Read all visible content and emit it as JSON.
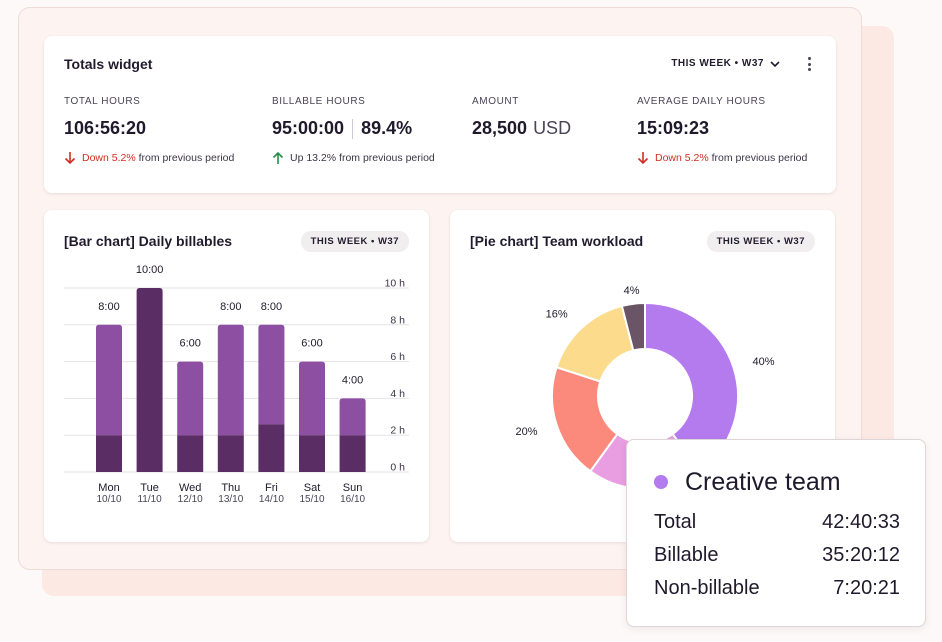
{
  "totals": {
    "title": "Totals widget",
    "period_label": "THIS WEEK • W37",
    "stats": [
      {
        "label": "TOTAL HOURS",
        "value": "106:56:20",
        "trend_change": "Down 5.2%",
        "trend_text": "from previous period",
        "trend": "down"
      },
      {
        "label": "BILLABLE HOURS",
        "value": "95:00:00",
        "value_secondary": "89.4%",
        "trend_change": "Up 13.2%",
        "trend_text": "from previous period",
        "trend": "up"
      },
      {
        "label": "AMOUNT",
        "value": "28,500",
        "unit": "USD"
      },
      {
        "label": "AVERAGE DAILY HOURS",
        "value": "15:09:23",
        "trend_change": "Down 5.2%",
        "trend_text": "from previous period",
        "trend": "down"
      }
    ]
  },
  "bar_card": {
    "title": "[Bar chart] Daily billables",
    "period_label": "THIS WEEK • W37"
  },
  "pie_card": {
    "title": "[Pie chart] Team workload",
    "period_label": "THIS WEEK • W37"
  },
  "tooltip": {
    "team": "Creative team",
    "rows": [
      {
        "label": "Total",
        "value": "42:40:33"
      },
      {
        "label": "Billable",
        "value": "35:20:12"
      },
      {
        "label": "Non-billable",
        "value": "7:20:21"
      }
    ]
  },
  "colors": {
    "bar_top": "#8c4fa2",
    "bar_bottom": "#5a2d64",
    "bar_full": "#5c2e64",
    "down": "#d22d25",
    "up": "#2a8a4a"
  },
  "chart_data": [
    {
      "type": "bar",
      "title": "[Bar chart] Daily billables",
      "categories": [
        "Mon",
        "Tue",
        "Wed",
        "Thu",
        "Fri",
        "Sat",
        "Sun"
      ],
      "dates": [
        "10/10",
        "11/10",
        "12/10",
        "13/10",
        "14/10",
        "15/10",
        "16/10"
      ],
      "totals": [
        8,
        10,
        6,
        8,
        8,
        6,
        4
      ],
      "bar_labels": [
        "8:00",
        "10:00",
        "6:00",
        "8:00",
        "8:00",
        "6:00",
        "4:00"
      ],
      "series": [
        {
          "values": [
            2,
            10,
            2,
            2,
            2.6,
            2,
            2
          ],
          "color": "#5a2d64"
        },
        {
          "values": [
            6,
            0,
            4,
            6,
            5.4,
            4,
            2
          ],
          "color": "#8c4fa2"
        }
      ],
      "ylim": [
        0,
        10
      ],
      "yticks": [
        0,
        2,
        4,
        6,
        8,
        10
      ],
      "ytick_labels": [
        "0 h",
        "2 h",
        "4 h",
        "6 h",
        "8 h",
        "10 h"
      ],
      "y_axis_side": "right",
      "grid": true
    },
    {
      "type": "pie",
      "title": "[Pie chart] Team workload",
      "donut": true,
      "slices": [
        {
          "value": 40,
          "label": "40%",
          "color": "#b47bef"
        },
        {
          "value": 20,
          "label": "",
          "color": "#e89ee0"
        },
        {
          "value": 20,
          "label": "20%",
          "color": "#fc8a7c"
        },
        {
          "value": 16,
          "label": "16%",
          "color": "#fddb8c"
        },
        {
          "value": 4,
          "label": "4%",
          "color": "#6a5566"
        }
      ]
    }
  ]
}
